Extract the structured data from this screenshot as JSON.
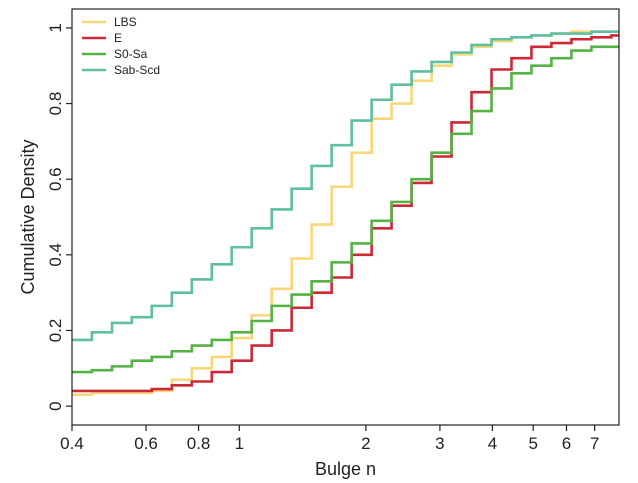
{
  "chart_data": {
    "type": "line",
    "step": true,
    "xlabel": "Bulge n",
    "ylabel": "Cumulative Density",
    "x_scale": "log",
    "xlim": [
      0.4,
      8.0
    ],
    "ylim": [
      -0.05,
      1.05
    ],
    "x_ticks": [
      0.4,
      0.6,
      0.8,
      1,
      2,
      3,
      4,
      5,
      6,
      7
    ],
    "x_tick_labels": [
      "0.4",
      "0.6",
      "0.8",
      "1",
      "2",
      "3",
      "4",
      "5",
      "6",
      "7"
    ],
    "y_ticks": [
      0,
      0.2,
      0.4,
      0.6,
      0.8,
      1
    ],
    "y_tick_labels": [
      "0",
      "0.2",
      "0.4",
      "0.6",
      "0.8",
      "1"
    ],
    "grid": false,
    "legend": "top-left",
    "bin_edges": [
      0.4,
      0.446,
      0.498,
      0.555,
      0.619,
      0.691,
      0.771,
      0.86,
      0.959,
      1.07,
      1.194,
      1.332,
      1.486,
      1.658,
      1.85,
      2.064,
      2.302,
      2.569,
      2.866,
      3.197,
      3.567,
      3.98,
      4.44,
      4.953,
      5.526,
      6.165,
      6.878,
      7.673,
      8.0
    ],
    "series": [
      {
        "name": "LBS",
        "color": "#f7d77a",
        "values": [
          0.03,
          0.035,
          0.035,
          0.035,
          0.04,
          0.07,
          0.1,
          0.13,
          0.18,
          0.24,
          0.31,
          0.39,
          0.48,
          0.58,
          0.67,
          0.76,
          0.8,
          0.86,
          0.9,
          0.93,
          0.95,
          0.965,
          0.975,
          0.98,
          0.985,
          0.99,
          0.99,
          0.99
        ]
      },
      {
        "name": "E",
        "color": "#cc2936",
        "values": [
          0.04,
          0.04,
          0.04,
          0.04,
          0.045,
          0.055,
          0.065,
          0.09,
          0.12,
          0.16,
          0.2,
          0.26,
          0.3,
          0.34,
          0.4,
          0.47,
          0.53,
          0.59,
          0.66,
          0.75,
          0.83,
          0.89,
          0.92,
          0.95,
          0.96,
          0.97,
          0.975,
          0.98
        ]
      },
      {
        "name": "S0-Sa",
        "color": "#56b146",
        "values": [
          0.09,
          0.095,
          0.105,
          0.12,
          0.13,
          0.145,
          0.16,
          0.175,
          0.195,
          0.225,
          0.265,
          0.295,
          0.33,
          0.38,
          0.43,
          0.49,
          0.54,
          0.6,
          0.67,
          0.72,
          0.78,
          0.84,
          0.88,
          0.9,
          0.92,
          0.94,
          0.95,
          0.95
        ]
      },
      {
        "name": "Sab-Scd",
        "color": "#5fbfa0",
        "values": [
          0.175,
          0.195,
          0.22,
          0.235,
          0.265,
          0.3,
          0.335,
          0.375,
          0.42,
          0.47,
          0.52,
          0.575,
          0.635,
          0.69,
          0.755,
          0.81,
          0.85,
          0.885,
          0.91,
          0.935,
          0.955,
          0.97,
          0.975,
          0.98,
          0.985,
          0.985,
          0.99,
          0.99
        ]
      }
    ]
  }
}
